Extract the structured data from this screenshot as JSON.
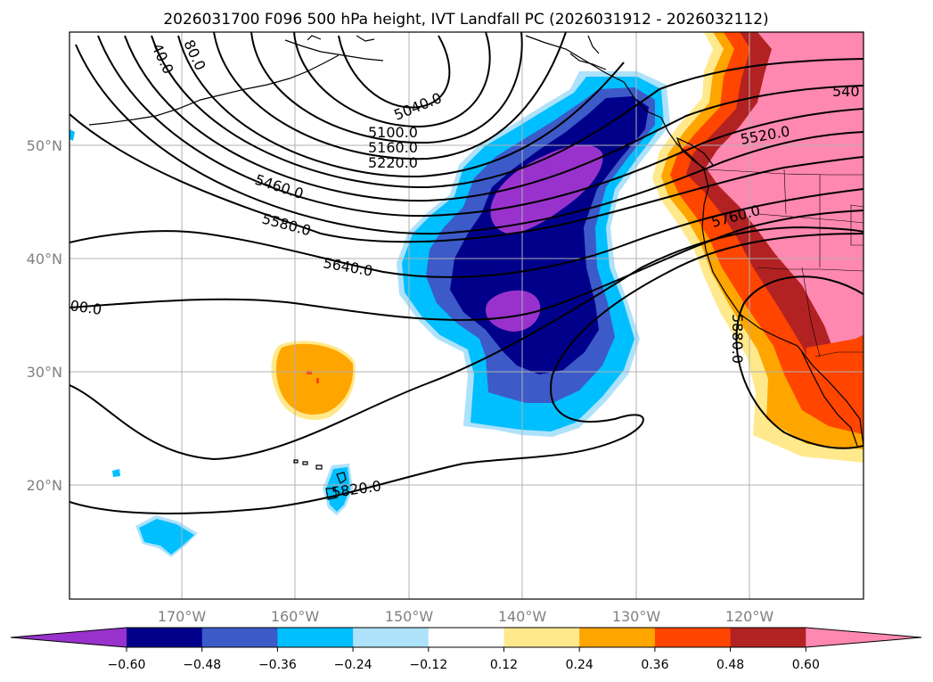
{
  "title": "2026031700 F096 500 hPa height, IVT Landfall PC (2026031912 - 2026032112)",
  "lat_labels": [
    "50°N",
    "40°N",
    "30°N",
    "20°N"
  ],
  "lon_labels": [
    "170°W",
    "160°W",
    "150°W",
    "140°W",
    "130°W",
    "120°W"
  ],
  "contour_labels": [
    "5040.0",
    "5100.0",
    "5160.0",
    "5220.0",
    "5460.0",
    "5580.0",
    "5640.0",
    "5520.0",
    "5760.0",
    "5880.0",
    "5820.0",
    "540",
    "40.0",
    "80.0",
    "00.0"
  ],
  "colorbar": {
    "tick_labels": [
      "−0.60",
      "−0.48",
      "−0.36",
      "−0.24",
      "−0.12",
      "0.12",
      "0.24",
      "0.36",
      "0.48",
      "0.60"
    ],
    "colors": [
      "#9932cc",
      "#00008b",
      "#3c5ac8",
      "#00bfff",
      "#aee2fa",
      "#ffffff",
      "#ffe98c",
      "#ffa500",
      "#ff4500",
      "#b22222",
      "#ff88b0"
    ]
  },
  "colors": {
    "purple": "#9932cc",
    "navy": "#00008b",
    "royal": "#3c5ac8",
    "sky": "#00bfff",
    "lightblue": "#aee2fa",
    "yellow": "#ffe98c",
    "orange": "#ffa500",
    "redorange": "#ff4500",
    "firebrick": "#b22222",
    "pink": "#ff88b0"
  }
}
